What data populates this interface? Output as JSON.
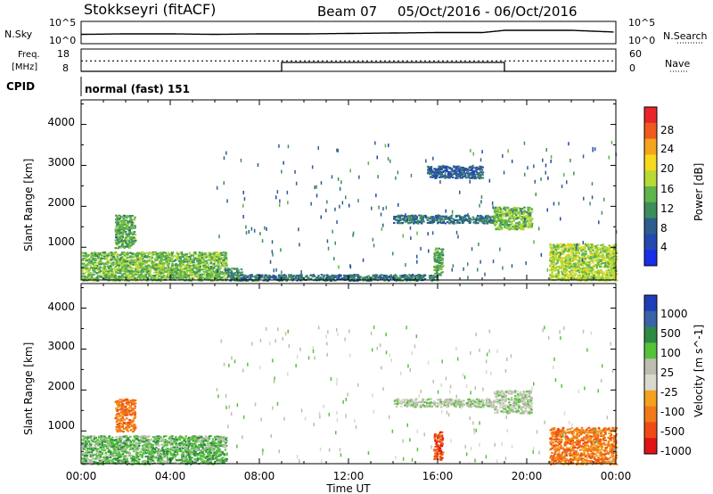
{
  "header": {
    "station": "Stokkseyri (fitACF)",
    "beam": "Beam 07",
    "dates": "05/Oct/2016 - 06/Oct/2016"
  },
  "noise_panel": {
    "left_label": "N.Sky",
    "right_label": "N.Search",
    "left_ticks": [
      "10^5",
      "10^0"
    ],
    "right_ticks": [
      "10^5",
      "10^0"
    ]
  },
  "freq_panel": {
    "left_label_1": "Freq.",
    "left_label_2": "[MHz]",
    "right_label": "Nave",
    "left_ticks": [
      "18",
      "8"
    ],
    "right_ticks": [
      "60",
      "0"
    ]
  },
  "cpid": {
    "label": "CPID",
    "mode": "normal (fast) 151"
  },
  "axes": {
    "ylabel": "Slant Range [km]",
    "yticks": [
      "4000",
      "3000",
      "2000",
      "1000"
    ],
    "xticks": [
      "00:00",
      "04:00",
      "08:00",
      "12:00",
      "16:00",
      "20:00",
      "00:00"
    ],
    "xlabel": "Time UT"
  },
  "power_colorbar": {
    "label": "Power [dB]",
    "ticks": [
      "28",
      "24",
      "20",
      "16",
      "12",
      "8",
      "4"
    ],
    "colors": [
      "#e8262a",
      "#f05a1c",
      "#f3a51d",
      "#f7da1e",
      "#b9d936",
      "#5fb54b",
      "#3d8e5c",
      "#2e5e8e",
      "#2448b0",
      "#1a2ee8"
    ]
  },
  "velocity_colorbar": {
    "label": "Velocity [m s^-1]",
    "ticks": [
      "1000",
      "500",
      "100",
      "25",
      "-25",
      "-100",
      "-500",
      "-1000"
    ],
    "colors": [
      "#1f3fb8",
      "#3a63a8",
      "#2f8a45",
      "#56c23a",
      "#bdbdb0",
      "#d9d9cf",
      "#f4a11e",
      "#f07a17",
      "#ef4a15",
      "#e01414"
    ]
  },
  "chart_data": [
    {
      "type": "line",
      "title": "N.Sky / N.Search",
      "x": [
        0,
        2,
        4,
        6,
        8,
        10,
        12,
        14,
        16,
        18,
        19,
        20,
        22,
        24
      ],
      "series": [
        {
          "name": "N.Sky",
          "values": [
            2.1,
            2.2,
            2.2,
            2.1,
            2.2,
            2.2,
            2.3,
            2.4,
            2.5,
            2.5,
            3.0,
            3.0,
            3.0,
            2.6
          ]
        }
      ],
      "yscale": "log",
      "ylim": [
        0,
        5
      ],
      "xlim": [
        0,
        24
      ]
    },
    {
      "type": "line",
      "title": "Freq. [MHz] / Nave",
      "x": [
        0,
        9,
        9,
        19,
        19,
        24
      ],
      "series": [
        {
          "name": "Freq.",
          "values": [
            8,
            8,
            12,
            12,
            8,
            8
          ]
        },
        {
          "name": "Nave",
          "values": [
            28,
            28,
            28,
            28,
            28,
            28
          ]
        }
      ],
      "ylim": [
        8,
        18
      ],
      "xlim": [
        0,
        24
      ]
    },
    {
      "type": "heatmap",
      "title": "Power [dB]",
      "xlabel": "Time UT",
      "ylabel": "Slant Range [km]",
      "xlim": [
        0,
        24
      ],
      "ylim": [
        200,
        4600
      ],
      "regions": [
        {
          "x0": 0.0,
          "x1": 6.5,
          "y0": 200,
          "y1": 900,
          "value": 14
        },
        {
          "x0": 1.5,
          "x1": 2.4,
          "y0": 1000,
          "y1": 1800,
          "value": 12
        },
        {
          "x0": 6.5,
          "x1": 7.2,
          "y0": 200,
          "y1": 500,
          "value": 10
        },
        {
          "x0": 7.0,
          "x1": 16.0,
          "y0": 200,
          "y1": 350,
          "value": 8
        },
        {
          "x0": 14.0,
          "x1": 18.5,
          "y0": 1600,
          "y1": 1800,
          "value": 8
        },
        {
          "x0": 15.5,
          "x1": 18.0,
          "y0": 2700,
          "y1": 3000,
          "value": 6
        },
        {
          "x0": 15.8,
          "x1": 16.2,
          "y0": 300,
          "y1": 1000,
          "value": 12
        },
        {
          "x0": 18.5,
          "x1": 20.2,
          "y0": 1450,
          "y1": 2000,
          "value": 14
        },
        {
          "x0": 21.0,
          "x1": 24.0,
          "y0": 200,
          "y1": 1100,
          "value": 16
        }
      ]
    },
    {
      "type": "heatmap",
      "title": "Velocity [m s^-1]",
      "xlabel": "Time UT",
      "ylabel": "Slant Range [km]",
      "xlim": [
        0,
        24
      ],
      "ylim": [
        200,
        4600
      ],
      "regions": [
        {
          "x0": 0.0,
          "x1": 6.5,
          "y0": 200,
          "y1": 900,
          "value": 50
        },
        {
          "x0": 1.5,
          "x1": 2.4,
          "y0": 1000,
          "y1": 1800,
          "value": -100
        },
        {
          "x0": 14.0,
          "x1": 18.5,
          "y0": 1600,
          "y1": 1800,
          "value": 0
        },
        {
          "x0": 18.5,
          "x1": 20.2,
          "y0": 1450,
          "y1": 2000,
          "value": 0
        },
        {
          "x0": 15.8,
          "x1": 16.2,
          "y0": 300,
          "y1": 1000,
          "value": -500
        },
        {
          "x0": 21.0,
          "x1": 24.0,
          "y0": 200,
          "y1": 1100,
          "value": -100
        }
      ]
    }
  ]
}
